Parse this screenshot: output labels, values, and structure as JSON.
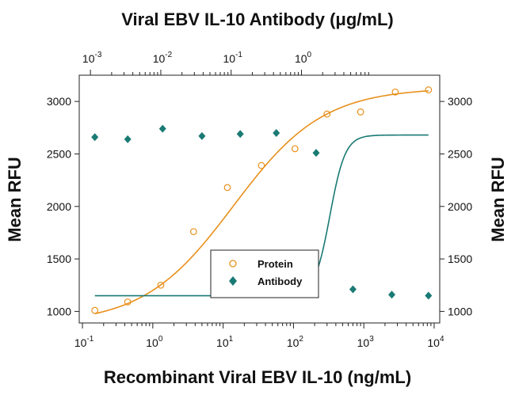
{
  "chart_data": {
    "type": "scatter",
    "top_axis_title": "Viral EBV IL-10 Antibody (μg/mL)",
    "x_title": "Recombinant Viral EBV IL-10 (ng/mL)",
    "y_title_left": "Mean RFU",
    "y_title_right": "Mean RFU",
    "x_scale": "log",
    "x_range": [
      0.09,
      12000
    ],
    "y_range": [
      890,
      3250
    ],
    "bottom_ticks": [
      {
        "value": 0.1,
        "base": "10",
        "exp": "-1"
      },
      {
        "value": 1,
        "base": "10",
        "exp": "0"
      },
      {
        "value": 10,
        "base": "10",
        "exp": "1"
      },
      {
        "value": 100,
        "base": "10",
        "exp": "2"
      },
      {
        "value": 1000,
        "base": "10",
        "exp": "3"
      },
      {
        "value": 10000,
        "base": "10",
        "exp": "4"
      }
    ],
    "top_ticks": [
      {
        "value": 1,
        "base": "10",
        "exp": "-3"
      },
      {
        "value": 10,
        "base": "10",
        "exp": "-2"
      },
      {
        "value": 100,
        "base": "10",
        "exp": "-1"
      },
      {
        "value": 1000,
        "base": "10",
        "exp": "0"
      }
    ],
    "y_ticks": [
      1000,
      1500,
      2000,
      2500,
      3000
    ],
    "legend_position": "bottom-center",
    "series": [
      {
        "name": "Protein",
        "marker": "open-circle",
        "color": "#e8901c",
        "points": [
          {
            "x": 0.15,
            "y": 1010
          },
          {
            "x": 0.44,
            "y": 1090
          },
          {
            "x": 1.3,
            "y": 1250
          },
          {
            "x": 3.8,
            "y": 1760
          },
          {
            "x": 11.5,
            "y": 2180
          },
          {
            "x": 35,
            "y": 2390
          },
          {
            "x": 105,
            "y": 2550
          },
          {
            "x": 300,
            "y": 2880
          },
          {
            "x": 900,
            "y": 2900
          },
          {
            "x": 2800,
            "y": 3090
          },
          {
            "x": 8300,
            "y": 3110
          }
        ],
        "fit": {
          "bottom": 880,
          "top": 3130,
          "ec50": 14,
          "hill": 0.68
        }
      },
      {
        "name": "Antibody",
        "marker": "filled-diamond",
        "color": "#1a7a74",
        "points": [
          {
            "x": 0.15,
            "y": 2660
          },
          {
            "x": 0.44,
            "y": 2640
          },
          {
            "x": 1.38,
            "y": 2740
          },
          {
            "x": 5.0,
            "y": 2670
          },
          {
            "x": 17.5,
            "y": 2690
          },
          {
            "x": 57,
            "y": 2700
          },
          {
            "x": 210,
            "y": 2510
          },
          {
            "x": 700,
            "y": 1210
          },
          {
            "x": 2500,
            "y": 1160
          },
          {
            "x": 8300,
            "y": 1150
          }
        ],
        "fit": {
          "bottom": 1150,
          "top": 2680,
          "ec50": 330,
          "hill": 4.0
        }
      }
    ]
  }
}
